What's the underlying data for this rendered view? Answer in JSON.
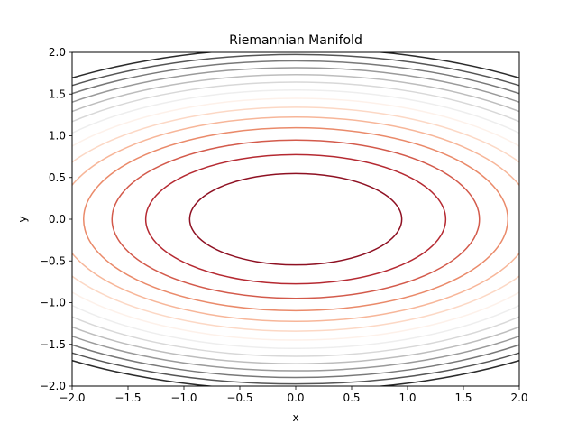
{
  "chart_data": {
    "type": "contour",
    "title": "Riemannian Manifold",
    "xlabel": "x",
    "ylabel": "y",
    "xlim": [
      -2.0,
      2.0
    ],
    "ylim": [
      -2.0,
      2.0
    ],
    "grid": false,
    "xticks": [
      "−2.0",
      "−1.5",
      "−1.0",
      "−0.5",
      "0.0",
      "0.5",
      "1.0",
      "1.5",
      "2.0"
    ],
    "yticks": [
      "−2.0",
      "−1.5",
      "−1.0",
      "−0.5",
      "0.0",
      "0.5",
      "1.0",
      "1.5",
      "2.0"
    ],
    "field": "f(x, y) = x^2 / 3 + y^2",
    "levels": [
      0.3,
      0.6,
      0.9,
      1.2,
      1.5,
      1.8,
      2.1,
      2.4,
      2.7,
      3.0,
      3.3,
      3.6,
      3.9,
      4.2
    ],
    "level_colors": [
      "#8e1022",
      "#b52931",
      "#d35a4b",
      "#ea8a6a",
      "#f7b699",
      "#fcd8c5",
      "#fdf1ea",
      "#eeeeee",
      "#d8d8d8",
      "#bdbdbd",
      "#9a9a9a",
      "#787878",
      "#555555",
      "#2b2b2b"
    ],
    "colormap": "RdGy"
  }
}
